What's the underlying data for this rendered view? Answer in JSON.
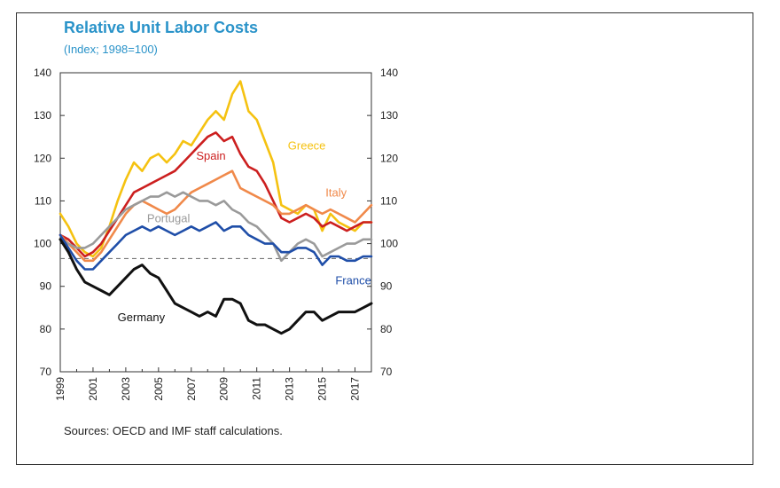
{
  "chart_data": {
    "type": "line",
    "title": "Relative Unit Labor Costs",
    "subtitle": "(Index; 1998=100)",
    "source": "Sources: OECD and IMF staff calculations.",
    "xlim": [
      1999,
      2018
    ],
    "ylim": [
      70,
      140
    ],
    "y_ticks": [
      70,
      80,
      90,
      100,
      110,
      120,
      130,
      140
    ],
    "x_ticks": [
      "1999",
      "2001",
      "2003",
      "2005",
      "2007",
      "2009",
      "2011",
      "2013",
      "2015",
      "2017"
    ],
    "x_tick_values": [
      1999,
      2001,
      2003,
      2005,
      2007,
      2009,
      2011,
      2013,
      2015,
      2017
    ],
    "reference_line": 96.5,
    "series": [
      {
        "name": "Greece",
        "color": "#f5c211",
        "points": [
          [
            1999,
            107
          ],
          [
            1999.5,
            104
          ],
          [
            2000,
            100
          ],
          [
            2000.5,
            98
          ],
          [
            2001,
            97
          ],
          [
            2001.5,
            99
          ],
          [
            2002,
            104
          ],
          [
            2002.5,
            110
          ],
          [
            2003,
            115
          ],
          [
            2003.5,
            119
          ],
          [
            2004,
            117
          ],
          [
            2004.5,
            120
          ],
          [
            2005,
            121
          ],
          [
            2005.5,
            119
          ],
          [
            2006,
            121
          ],
          [
            2006.5,
            124
          ],
          [
            2007,
            123
          ],
          [
            2007.5,
            126
          ],
          [
            2008,
            129
          ],
          [
            2008.5,
            131
          ],
          [
            2009,
            129
          ],
          [
            2009.5,
            135
          ],
          [
            2010,
            138
          ],
          [
            2010.5,
            131
          ],
          [
            2011,
            129
          ],
          [
            2011.5,
            124
          ],
          [
            2012,
            119
          ],
          [
            2012.5,
            109
          ],
          [
            2013,
            108
          ],
          [
            2013.5,
            107
          ],
          [
            2014,
            109
          ],
          [
            2014.5,
            108
          ],
          [
            2015,
            103
          ],
          [
            2015.5,
            107
          ],
          [
            2016,
            105
          ],
          [
            2016.5,
            104
          ],
          [
            2017,
            103
          ],
          [
            2017.5,
            105
          ],
          [
            2018,
            105
          ]
        ]
      },
      {
        "name": "Spain",
        "color": "#cc1f1f",
        "points": [
          [
            1999,
            102
          ],
          [
            1999.5,
            101
          ],
          [
            2000,
            99
          ],
          [
            2000.5,
            97
          ],
          [
            2001,
            98
          ],
          [
            2001.5,
            100
          ],
          [
            2002,
            103
          ],
          [
            2002.5,
            106
          ],
          [
            2003,
            109
          ],
          [
            2003.5,
            112
          ],
          [
            2004,
            113
          ],
          [
            2004.5,
            114
          ],
          [
            2005,
            115
          ],
          [
            2005.5,
            116
          ],
          [
            2006,
            117
          ],
          [
            2006.5,
            119
          ],
          [
            2007,
            121
          ],
          [
            2007.5,
            123
          ],
          [
            2008,
            125
          ],
          [
            2008.5,
            126
          ],
          [
            2009,
            124
          ],
          [
            2009.5,
            125
          ],
          [
            2010,
            121
          ],
          [
            2010.5,
            118
          ],
          [
            2011,
            117
          ],
          [
            2011.5,
            114
          ],
          [
            2012,
            110
          ],
          [
            2012.5,
            106
          ],
          [
            2013,
            105
          ],
          [
            2013.5,
            106
          ],
          [
            2014,
            107
          ],
          [
            2014.5,
            106
          ],
          [
            2015,
            104
          ],
          [
            2015.5,
            105
          ],
          [
            2016,
            104
          ],
          [
            2016.5,
            103
          ],
          [
            2017,
            104
          ],
          [
            2017.5,
            105
          ],
          [
            2018,
            105
          ]
        ]
      },
      {
        "name": "Italy",
        "color": "#f0894a",
        "points": [
          [
            1999,
            102
          ],
          [
            1999.5,
            100
          ],
          [
            2000,
            98
          ],
          [
            2000.5,
            96
          ],
          [
            2001,
            96
          ],
          [
            2001.5,
            98
          ],
          [
            2002,
            101
          ],
          [
            2002.5,
            104
          ],
          [
            2003,
            107
          ],
          [
            2003.5,
            109
          ],
          [
            2004,
            110
          ],
          [
            2004.5,
            109
          ],
          [
            2005,
            108
          ],
          [
            2005.5,
            107
          ],
          [
            2006,
            108
          ],
          [
            2006.5,
            110
          ],
          [
            2007,
            112
          ],
          [
            2007.5,
            113
          ],
          [
            2008,
            114
          ],
          [
            2008.5,
            115
          ],
          [
            2009,
            116
          ],
          [
            2009.5,
            117
          ],
          [
            2010,
            113
          ],
          [
            2010.5,
            112
          ],
          [
            2011,
            111
          ],
          [
            2011.5,
            110
          ],
          [
            2012,
            109
          ],
          [
            2012.5,
            107
          ],
          [
            2013,
            107
          ],
          [
            2013.5,
            108
          ],
          [
            2014,
            109
          ],
          [
            2014.5,
            108
          ],
          [
            2015,
            107
          ],
          [
            2015.5,
            108
          ],
          [
            2016,
            107
          ],
          [
            2016.5,
            106
          ],
          [
            2017,
            105
          ],
          [
            2017.5,
            107
          ],
          [
            2018,
            109
          ]
        ]
      },
      {
        "name": "Portugal",
        "color": "#9a9a9a",
        "points": [
          [
            1999,
            101
          ],
          [
            1999.5,
            100
          ],
          [
            2000,
            99
          ],
          [
            2000.5,
            99
          ],
          [
            2001,
            100
          ],
          [
            2001.5,
            102
          ],
          [
            2002,
            104
          ],
          [
            2002.5,
            106
          ],
          [
            2003,
            108
          ],
          [
            2003.5,
            109
          ],
          [
            2004,
            110
          ],
          [
            2004.5,
            111
          ],
          [
            2005,
            111
          ],
          [
            2005.5,
            112
          ],
          [
            2006,
            111
          ],
          [
            2006.5,
            112
          ],
          [
            2007,
            111
          ],
          [
            2007.5,
            110
          ],
          [
            2008,
            110
          ],
          [
            2008.5,
            109
          ],
          [
            2009,
            110
          ],
          [
            2009.5,
            108
          ],
          [
            2010,
            107
          ],
          [
            2010.5,
            105
          ],
          [
            2011,
            104
          ],
          [
            2011.5,
            102
          ],
          [
            2012,
            100
          ],
          [
            2012.5,
            96
          ],
          [
            2013,
            98
          ],
          [
            2013.5,
            100
          ],
          [
            2014,
            101
          ],
          [
            2014.5,
            100
          ],
          [
            2015,
            97
          ],
          [
            2015.5,
            98
          ],
          [
            2016,
            99
          ],
          [
            2016.5,
            100
          ],
          [
            2017,
            100
          ],
          [
            2017.5,
            101
          ],
          [
            2018,
            101
          ]
        ]
      },
      {
        "name": "France",
        "color": "#1f4ea8",
        "points": [
          [
            1999,
            102
          ],
          [
            1999.5,
            99
          ],
          [
            2000,
            96
          ],
          [
            2000.5,
            94
          ],
          [
            2001,
            94
          ],
          [
            2001.5,
            96
          ],
          [
            2002,
            98
          ],
          [
            2002.5,
            100
          ],
          [
            2003,
            102
          ],
          [
            2003.5,
            103
          ],
          [
            2004,
            104
          ],
          [
            2004.5,
            103
          ],
          [
            2005,
            104
          ],
          [
            2005.5,
            103
          ],
          [
            2006,
            102
          ],
          [
            2006.5,
            103
          ],
          [
            2007,
            104
          ],
          [
            2007.5,
            103
          ],
          [
            2008,
            104
          ],
          [
            2008.5,
            105
          ],
          [
            2009,
            103
          ],
          [
            2009.5,
            104
          ],
          [
            2010,
            104
          ],
          [
            2010.5,
            102
          ],
          [
            2011,
            101
          ],
          [
            2011.5,
            100
          ],
          [
            2012,
            100
          ],
          [
            2012.5,
            98
          ],
          [
            2013,
            98
          ],
          [
            2013.5,
            99
          ],
          [
            2014,
            99
          ],
          [
            2014.5,
            98
          ],
          [
            2015,
            95
          ],
          [
            2015.5,
            97
          ],
          [
            2016,
            97
          ],
          [
            2016.5,
            96
          ],
          [
            2017,
            96
          ],
          [
            2017.5,
            97
          ],
          [
            2018,
            97
          ]
        ]
      },
      {
        "name": "Germany",
        "color": "#111111",
        "points": [
          [
            1999,
            101
          ],
          [
            1999.5,
            98
          ],
          [
            2000,
            94
          ],
          [
            2000.5,
            91
          ],
          [
            2001,
            90
          ],
          [
            2001.5,
            89
          ],
          [
            2002,
            88
          ],
          [
            2002.5,
            90
          ],
          [
            2003,
            92
          ],
          [
            2003.5,
            94
          ],
          [
            2004,
            95
          ],
          [
            2004.5,
            93
          ],
          [
            2005,
            92
          ],
          [
            2005.5,
            89
          ],
          [
            2006,
            86
          ],
          [
            2006.5,
            85
          ],
          [
            2007,
            84
          ],
          [
            2007.5,
            83
          ],
          [
            2008,
            84
          ],
          [
            2008.5,
            83
          ],
          [
            2009,
            87
          ],
          [
            2009.5,
            87
          ],
          [
            2010,
            86
          ],
          [
            2010.5,
            82
          ],
          [
            2011,
            81
          ],
          [
            2011.5,
            81
          ],
          [
            2012,
            80
          ],
          [
            2012.5,
            79
          ],
          [
            2013,
            80
          ],
          [
            2013.5,
            82
          ],
          [
            2014,
            84
          ],
          [
            2014.5,
            84
          ],
          [
            2015,
            82
          ],
          [
            2015.5,
            83
          ],
          [
            2016,
            84
          ],
          [
            2016.5,
            84
          ],
          [
            2017,
            84
          ],
          [
            2017.5,
            85
          ],
          [
            2018,
            86
          ]
        ]
      }
    ],
    "series_labels": [
      {
        "text": "Greece",
        "x": 2012.9,
        "y": 122,
        "color": "#f5c211"
      },
      {
        "text": "Spain",
        "x": 2007.3,
        "y": 119.6,
        "color": "#cc1f1f"
      },
      {
        "text": "Italy",
        "x": 2015.2,
        "y": 111,
        "color": "#f0894a"
      },
      {
        "text": "Portugal",
        "x": 2004.3,
        "y": 105,
        "color": "#9a9a9a"
      },
      {
        "text": "France",
        "x": 2015.8,
        "y": 90.5,
        "color": "#1f4ea8"
      },
      {
        "text": "Germany",
        "x": 2002.5,
        "y": 81.8,
        "color": "#111111"
      }
    ]
  }
}
